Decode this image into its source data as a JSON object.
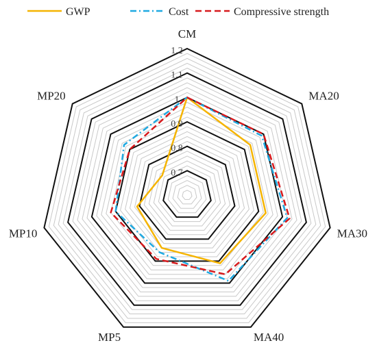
{
  "chart_data": {
    "type": "radar",
    "title": "",
    "categories": [
      "CM",
      "MA20",
      "MA30",
      "MA40",
      "MP5",
      "MP10",
      "MP20"
    ],
    "rlim": [
      0.6,
      1.2
    ],
    "ticks": [
      0.7,
      0.8,
      0.9,
      1,
      1.1,
      1.2
    ],
    "tick_labels": [
      "0.7",
      "0.8",
      "0.9",
      "1",
      "1.1",
      "1.2"
    ],
    "major_ticks": [
      0.7,
      0.8,
      0.9,
      1,
      1.1,
      1.2
    ],
    "minor_step": 0.02,
    "legend_position": "top",
    "series": [
      {
        "name": "GWP",
        "values": [
          1.0,
          0.93,
          0.93,
          0.91,
          0.84,
          0.81,
          0.73
        ],
        "color": "#f5b400",
        "dash": "solid"
      },
      {
        "name": "Cost",
        "values": [
          1.0,
          0.99,
          1.02,
          0.99,
          0.86,
          0.9,
          0.93
        ],
        "color": "#1fa9e1",
        "dash": "dashdot"
      },
      {
        "name": "Compressive strength",
        "values": [
          1.0,
          1.0,
          1.03,
          0.96,
          0.89,
          0.92,
          0.9
        ],
        "color": "#d7191c",
        "dash": "dashed"
      }
    ]
  }
}
